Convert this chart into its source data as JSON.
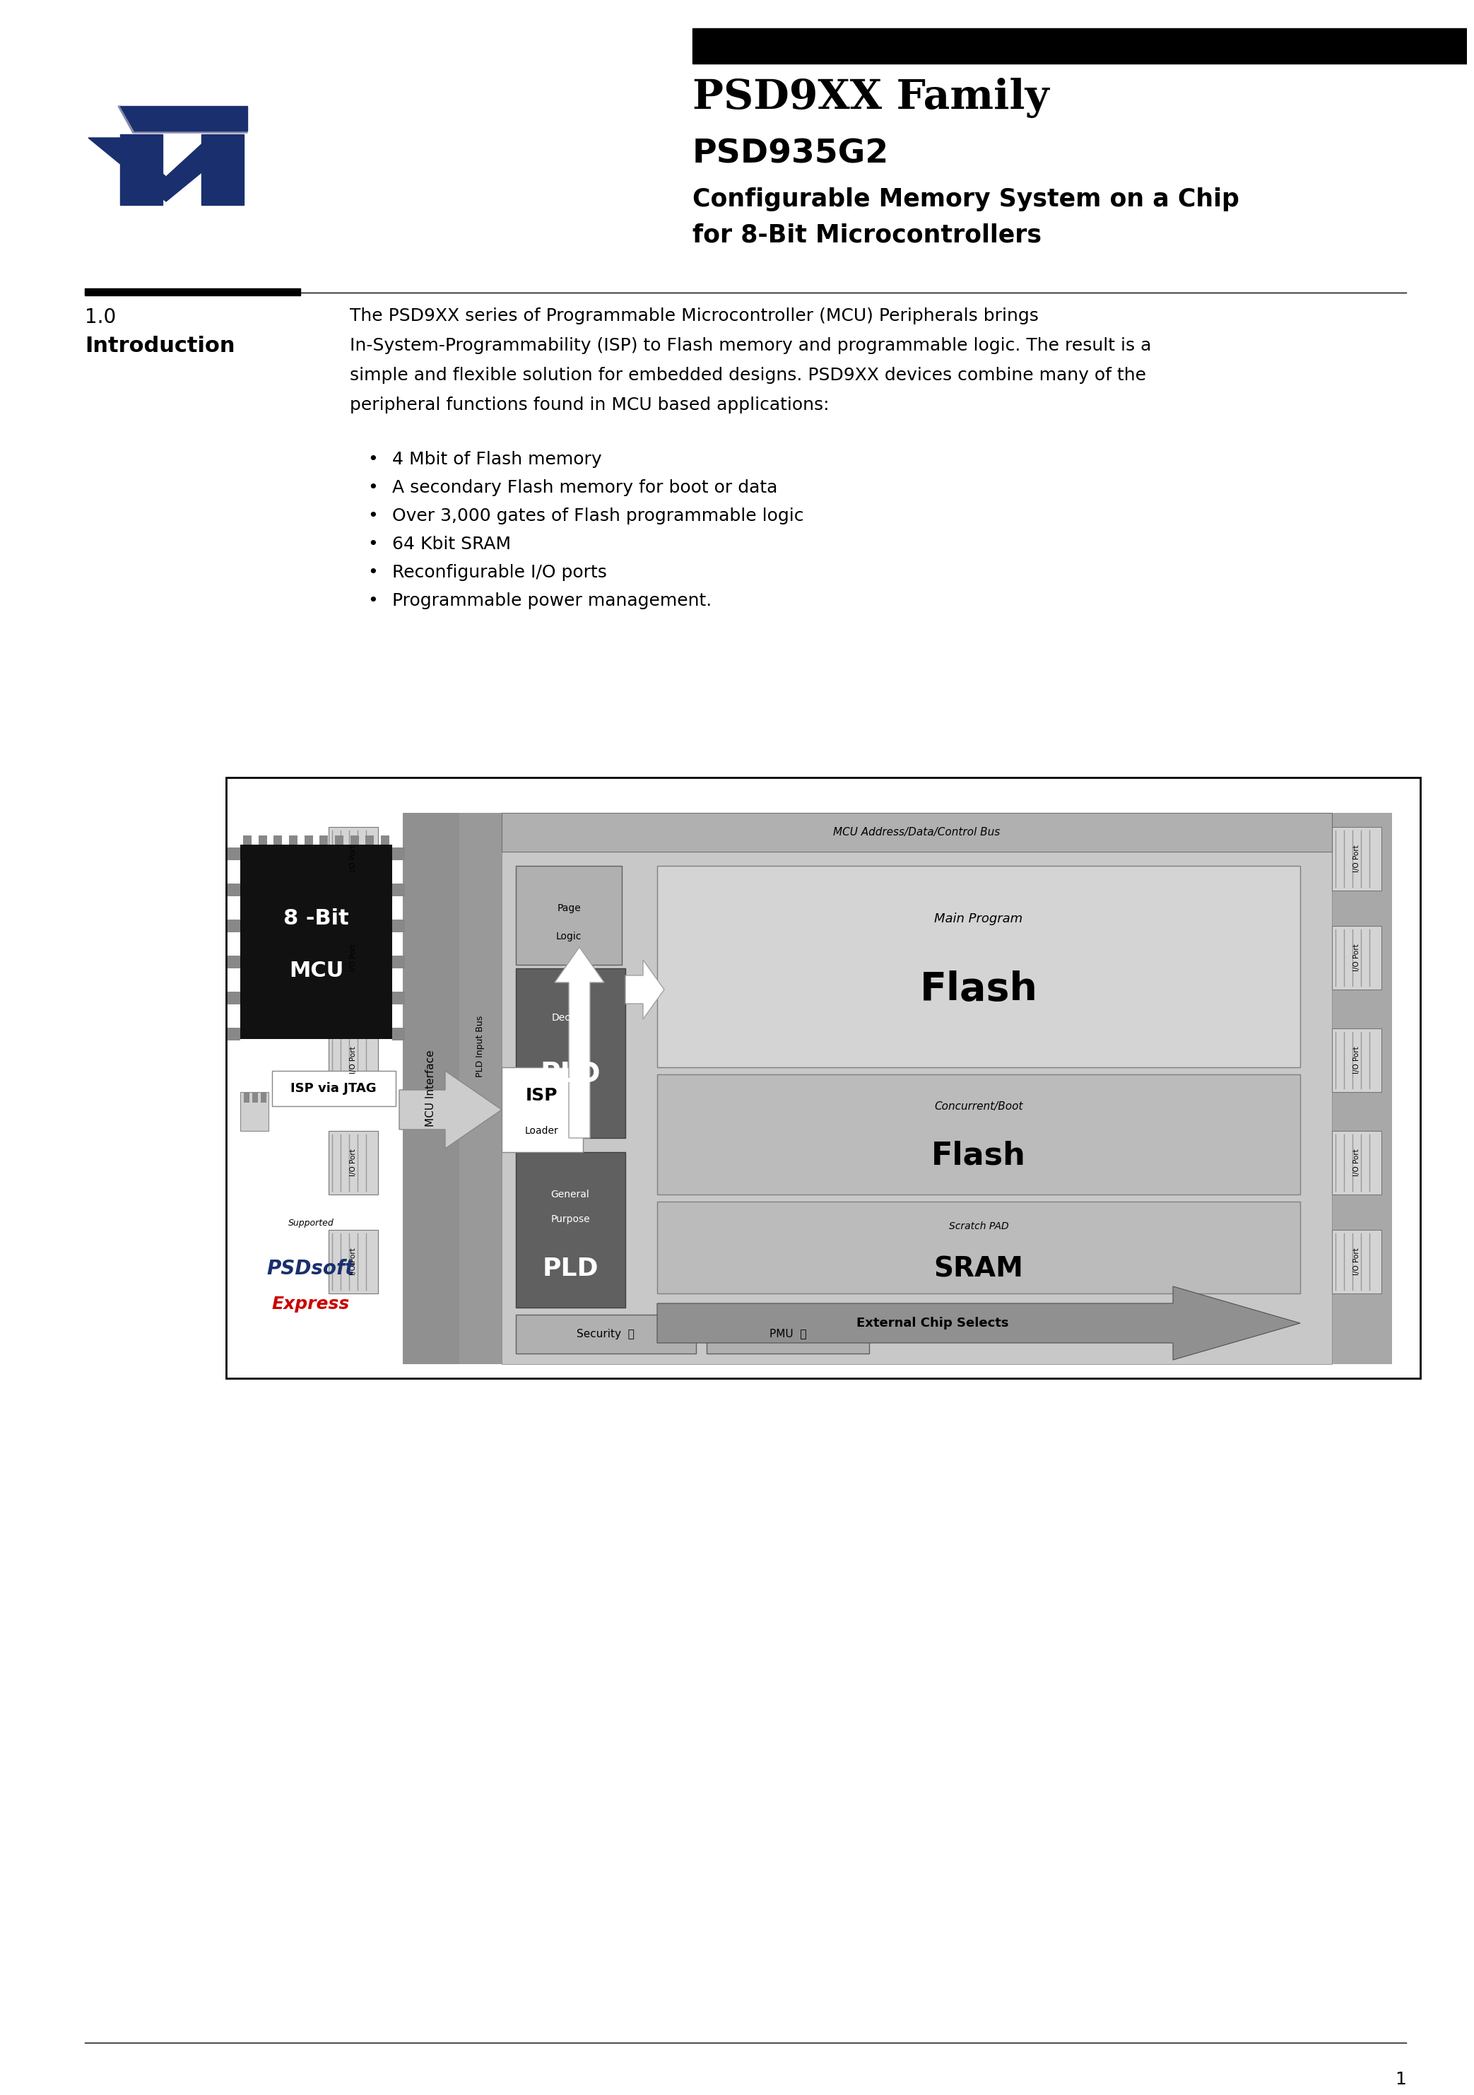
{
  "bg_color": "#ffffff",
  "header_bar_color": "#000000",
  "logo_color": "#1a2f6e",
  "title_family": "PSD9XX Family",
  "title_model": "PSD935G2",
  "title_desc1": "Configurable Memory System on a Chip",
  "title_desc2": "for 8-Bit Microcontrollers",
  "section_number": "1.0",
  "section_title": "Introduction",
  "intro_lines": [
    "The PSD9XX series of Programmable Microcontroller (MCU) Peripherals brings",
    "In-System-Programmability (ISP) to Flash memory and programmable logic. The result is a",
    "simple and flexible solution for embedded designs. PSD9XX devices combine many of the",
    "peripheral functions found in MCU based applications:"
  ],
  "bullets": [
    "4 Mbit of Flash memory",
    "A secondary Flash memory for boot or data",
    "Over 3,000 gates of Flash programmable logic",
    "64 Kbit SRAM",
    "Reconfigurable I/O ports",
    "Programmable power management."
  ],
  "footer_page": "1",
  "gray_chip": "#a8a8a8",
  "gray_inner": "#c8c8c8",
  "gray_dark": "#606060",
  "gray_medium": "#909090",
  "gray_light": "#d4d4d4",
  "gray_bus_strip": "#888888",
  "gray_io": "#b8b8b8",
  "white": "#ffffff",
  "black": "#000000"
}
